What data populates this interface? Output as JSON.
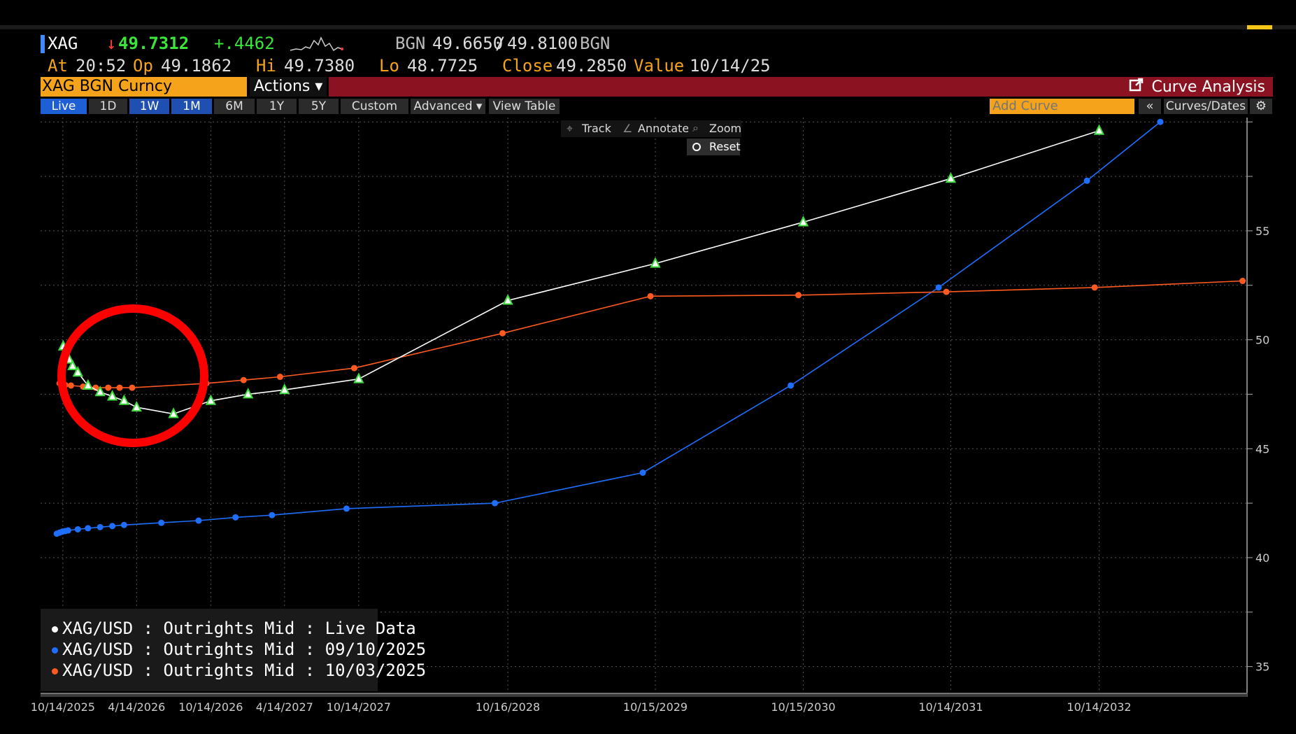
{
  "header": {
    "ticker": "XAG",
    "last_price": "49.7312",
    "change": "+.4462",
    "bid_source": "BGN",
    "bid": "49.6650",
    "ask": "49.8100",
    "ask_source": "BGN",
    "at_label": "At",
    "at_time": "20:52",
    "open_label": "Op",
    "open_value": "49.1862",
    "high_label": "Hi",
    "high_value": "49.7380",
    "low_label": "Lo",
    "low_value": "48.7725",
    "close_label": "Close",
    "close_value": "49.2850",
    "value_label": "Value",
    "value_date": "10/14/25"
  },
  "security_bar": {
    "security": "XAG BGN Curncy",
    "actions_label": "Actions ▾",
    "function_label": "Curve Analysis"
  },
  "toolbar": {
    "ranges": [
      "Live",
      "1D",
      "1W",
      "1M",
      "6M",
      "1Y",
      "5Y",
      "Custom"
    ],
    "advanced_label": "Advanced ▾",
    "view_table_label": "View Table",
    "add_curve_placeholder": "Add Curve",
    "collapse_label": "«",
    "curves_dates_label": "Curves/Dates",
    "settings_label": "⚙"
  },
  "chart_tools": {
    "track_label": "Track",
    "annotate_label": "Annotate",
    "zoom_label": "Zoom",
    "reset_label": "Reset"
  },
  "colors": {
    "live": "#ffffff",
    "live_marker": "#3ddc3d",
    "sep": "#1f6fff",
    "oct": "#ff5a1f",
    "highlight_circle": "#ff0000"
  },
  "chart_data": {
    "type": "line",
    "title": "",
    "xlabel": "",
    "ylabel": "",
    "x_tick_labels": [
      "10/14/2025",
      "4/14/2026",
      "10/14/2026",
      "4/14/2027",
      "10/14/2027",
      "10/16/2028",
      "10/15/2029",
      "10/15/2030",
      "10/14/2031",
      "10/14/2032"
    ],
    "y_ticks": [
      35,
      40,
      45,
      50,
      55
    ],
    "ylim": [
      33.8,
      60.2
    ],
    "grid": true,
    "legend_placement": "bottom-left",
    "series": [
      {
        "name": "XAG/USD : Outrights Mid : Live Data",
        "color_key": "live",
        "points": [
          [
            "2025-10-15",
            49.7
          ],
          [
            "2025-10-20",
            49.4
          ],
          [
            "2025-10-29",
            49.1
          ],
          [
            "2025-11-07",
            48.8
          ],
          [
            "2025-11-20",
            48.5
          ],
          [
            "2025-12-15",
            47.9
          ],
          [
            "2026-01-14",
            47.6
          ],
          [
            "2026-02-13",
            47.4
          ],
          [
            "2026-03-14",
            47.2
          ],
          [
            "2026-04-14",
            46.9
          ],
          [
            "2026-07-14",
            46.6
          ],
          [
            "2026-10-14",
            47.2
          ],
          [
            "2027-01-14",
            47.5
          ],
          [
            "2027-04-14",
            47.7
          ],
          [
            "2027-10-14",
            48.2
          ],
          [
            "2028-10-16",
            51.8
          ],
          [
            "2029-10-15",
            53.5
          ],
          [
            "2030-10-15",
            55.4
          ],
          [
            "2031-10-14",
            57.4
          ],
          [
            "2032-10-14",
            59.6
          ]
        ]
      },
      {
        "name": "XAG/USD : Outrights Mid : 09/10/2025",
        "color_key": "sep",
        "points": [
          [
            "2025-09-29",
            41.1
          ],
          [
            "2025-10-06",
            41.15
          ],
          [
            "2025-10-13",
            41.2
          ],
          [
            "2025-10-20",
            41.22
          ],
          [
            "2025-10-27",
            41.25
          ],
          [
            "2025-11-20",
            41.3
          ],
          [
            "2025-12-15",
            41.35
          ],
          [
            "2026-01-14",
            41.4
          ],
          [
            "2026-02-13",
            41.45
          ],
          [
            "2026-03-14",
            41.5
          ],
          [
            "2026-06-14",
            41.6
          ],
          [
            "2026-09-14",
            41.7
          ],
          [
            "2026-12-14",
            41.85
          ],
          [
            "2027-03-14",
            41.95
          ],
          [
            "2027-09-14",
            42.25
          ],
          [
            "2028-09-14",
            42.5
          ],
          [
            "2029-09-14",
            43.9
          ],
          [
            "2030-09-14",
            47.9
          ],
          [
            "2031-09-14",
            52.4
          ],
          [
            "2032-09-14",
            57.3
          ],
          [
            "2033-03-14",
            60.0
          ]
        ]
      },
      {
        "name": "XAG/USD : Outrights Mid : 10/03/2025",
        "color_key": "oct",
        "points": [
          [
            "2025-10-06",
            48.0
          ],
          [
            "2025-10-13",
            47.95
          ],
          [
            "2025-10-20",
            47.92
          ],
          [
            "2025-11-03",
            47.9
          ],
          [
            "2025-12-03",
            47.85
          ],
          [
            "2026-01-03",
            47.8
          ],
          [
            "2026-02-03",
            47.8
          ],
          [
            "2026-03-03",
            47.8
          ],
          [
            "2026-04-03",
            47.8
          ],
          [
            "2026-10-03",
            48.0
          ],
          [
            "2027-01-03",
            48.15
          ],
          [
            "2027-04-03",
            48.3
          ],
          [
            "2027-10-03",
            48.7
          ],
          [
            "2028-10-03",
            50.3
          ],
          [
            "2029-10-03",
            52.0
          ],
          [
            "2030-10-03",
            52.05
          ],
          [
            "2031-10-03",
            52.2
          ],
          [
            "2032-10-03",
            52.4
          ],
          [
            "2033-10-03",
            52.7
          ]
        ]
      }
    ]
  }
}
